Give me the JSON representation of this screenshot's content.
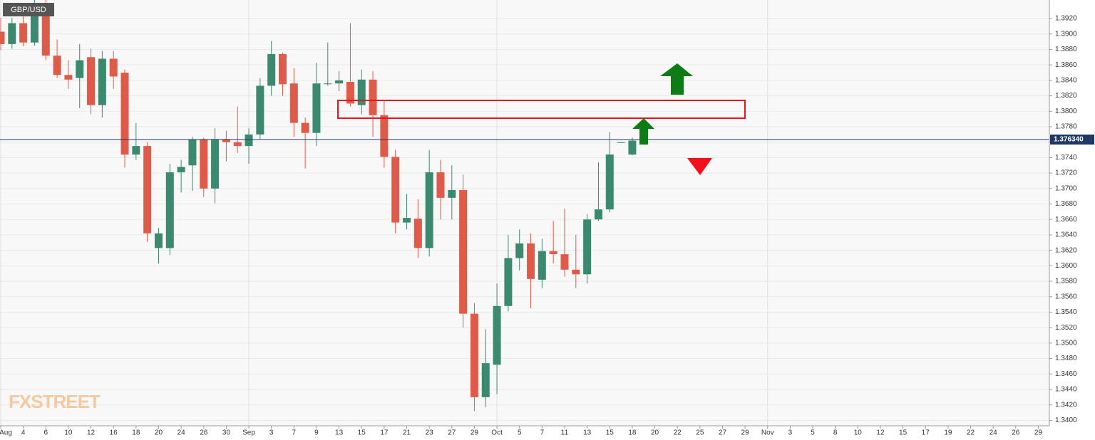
{
  "chart_data": {
    "type": "candlestick",
    "symbol": "GBP/USD",
    "watermark": "FXSTREET",
    "up_color": "#3b8a70",
    "down_color": "#de5b4a",
    "grid": true,
    "categories": [
      "Aug",
      null,
      "4",
      null,
      "6",
      null,
      "10",
      null,
      "12",
      null,
      "16",
      null,
      "18",
      null,
      "20",
      null,
      "24",
      null,
      "26",
      null,
      "30",
      null,
      "Sep",
      null,
      "3",
      null,
      "7",
      null,
      "9",
      null,
      "13",
      null,
      "15",
      null,
      "17",
      null,
      "21",
      null,
      "23",
      null,
      "27",
      null,
      "29",
      null,
      "Oct",
      null,
      "5",
      null,
      "7",
      null,
      "11",
      null,
      "13",
      null,
      "15",
      null,
      "18",
      null,
      "20",
      null,
      "22",
      null,
      "25",
      null,
      "27",
      null,
      "29",
      null,
      "Nov",
      null,
      "3",
      null,
      "5",
      null,
      "8",
      null,
      "10",
      null,
      "12",
      null,
      "15",
      null,
      "17",
      null,
      "19",
      null,
      "22",
      null,
      "24",
      null,
      "26",
      null,
      "29",
      null
    ],
    "open": [
      1.3903,
      1.3887,
      1.3914,
      1.3889,
      1.3935,
      1.3872,
      1.3847,
      1.3843,
      1.387,
      1.3808,
      1.3868,
      1.385,
      1.3744,
      1.3755,
      1.3623,
      1.3623,
      1.3721,
      1.373,
      1.3763,
      1.37,
      1.3764,
      1.376,
      1.3755,
      1.377,
      1.3833,
      1.3874,
      1.3836,
      1.3785,
      1.3772,
      1.3835,
      1.3836,
      1.3838,
      1.3808,
      1.3841,
      1.3795,
      1.3741,
      1.3656,
      1.3661,
      1.3623,
      1.3721,
      1.3688,
      1.3698,
      1.3538,
      1.343,
      1.3472,
      1.3548,
      1.361,
      1.3629,
      1.3582,
      1.3619,
      1.3615,
      1.3595,
      1.3589,
      1.366,
      1.3673,
      1.3759,
      1.3744,
      null,
      null,
      null,
      null,
      null,
      null,
      null,
      null,
      null,
      null,
      null,
      null,
      null,
      null,
      null,
      null,
      null,
      null,
      null,
      null,
      null,
      null,
      null,
      null,
      null,
      null,
      null,
      null,
      null,
      null,
      null,
      null,
      null,
      null,
      null,
      null,
      null
    ],
    "high": [
      1.3921,
      1.3921,
      1.393,
      1.3944,
      1.3944,
      1.3893,
      1.3866,
      1.3887,
      1.3881,
      1.3878,
      1.3878,
      1.3854,
      1.3785,
      1.376,
      1.3649,
      1.3732,
      1.3737,
      1.3767,
      1.3766,
      1.3778,
      1.3775,
      1.3806,
      1.3778,
      1.3843,
      1.3891,
      1.3876,
      1.3856,
      1.3792,
      1.3863,
      1.3889,
      1.3852,
      1.3914,
      1.3854,
      1.3852,
      1.3815,
      1.375,
      1.3693,
      1.3686,
      1.375,
      1.3737,
      1.373,
      1.3718,
      1.3552,
      1.3518,
      1.3577,
      1.364,
      1.3647,
      1.3642,
      1.3635,
      1.3658,
      1.3674,
      1.364,
      1.3667,
      1.3734,
      1.3773,
      1.376,
      1.3766,
      null,
      null,
      null,
      null,
      null,
      null,
      null,
      null,
      null,
      null,
      null,
      null,
      null,
      null,
      null,
      null,
      null,
      null,
      null,
      null,
      null,
      null,
      null,
      null,
      null,
      null,
      null,
      null,
      null,
      null,
      null,
      null,
      null,
      null,
      null,
      null,
      null
    ],
    "low": [
      1.3879,
      1.3881,
      1.3884,
      1.3885,
      1.3866,
      1.3843,
      1.3829,
      1.3804,
      1.3796,
      1.3792,
      1.3829,
      1.3727,
      1.3737,
      1.3631,
      1.3603,
      1.3614,
      1.3695,
      1.3697,
      1.3689,
      1.3681,
      1.3735,
      1.3746,
      1.3732,
      1.3764,
      1.382,
      1.382,
      1.3767,
      1.3726,
      1.3755,
      1.3833,
      1.3826,
      1.3806,
      1.3796,
      1.3767,
      1.3727,
      1.3642,
      1.3647,
      1.361,
      1.3612,
      1.366,
      1.366,
      1.352,
      1.3412,
      1.3417,
      1.3434,
      1.3541,
      1.3594,
      1.3545,
      1.3571,
      1.3603,
      1.3586,
      1.3571,
      1.3577,
      1.3658,
      1.3669,
      1.3759,
      1.3743,
      null,
      null,
      null,
      null,
      null,
      null,
      null,
      null,
      null,
      null,
      null,
      null,
      null,
      null,
      null,
      null,
      null,
      null,
      null,
      null,
      null,
      null,
      null,
      null,
      null,
      null,
      null,
      null,
      null,
      null,
      null,
      null,
      null,
      null,
      null,
      null,
      null
    ],
    "close": [
      1.3887,
      1.3914,
      1.3889,
      1.3935,
      1.3872,
      1.3847,
      1.3841,
      1.3866,
      1.3808,
      1.3868,
      1.3845,
      1.3744,
      1.3755,
      1.3642,
      1.3642,
      1.3721,
      1.3728,
      1.3763,
      1.37,
      1.3764,
      1.376,
      1.3755,
      1.377,
      1.3833,
      1.3874,
      1.3835,
      1.3785,
      1.3772,
      1.3836,
      1.3836,
      1.384,
      1.381,
      1.3841,
      1.3795,
      1.3741,
      1.3656,
      1.3662,
      1.3623,
      1.3721,
      1.3688,
      1.3698,
      1.3538,
      1.343,
      1.3474,
      1.3548,
      1.361,
      1.3629,
      1.3583,
      1.3619,
      1.3615,
      1.3595,
      1.3589,
      1.366,
      1.3673,
      1.3744,
      1.376,
      1.3762,
      null,
      null,
      null,
      null,
      null,
      null,
      null,
      null,
      null,
      null,
      null,
      null,
      null,
      null,
      null,
      null,
      null,
      null,
      null,
      null,
      null,
      null,
      null,
      null,
      null,
      null,
      null,
      null,
      null,
      null,
      null,
      null,
      null,
      null,
      null,
      null,
      null
    ],
    "ylim": [
      1.3393,
      1.3944
    ],
    "yticks": [
      {
        "value": 1.34,
        "label": "1.3400"
      },
      {
        "value": 1.342,
        "label": "1.3420"
      },
      {
        "value": 1.344,
        "label": "1.3440"
      },
      {
        "value": 1.346,
        "label": "1.3460"
      },
      {
        "value": 1.348,
        "label": "1.3480"
      },
      {
        "value": 1.35,
        "label": "1.3500"
      },
      {
        "value": 1.352,
        "label": "1.3520"
      },
      {
        "value": 1.354,
        "label": "1.3540"
      },
      {
        "value": 1.356,
        "label": "1.3560"
      },
      {
        "value": 1.358,
        "label": "1.3580"
      },
      {
        "value": 1.36,
        "label": "1.3600"
      },
      {
        "value": 1.362,
        "label": "1.3620"
      },
      {
        "value": 1.364,
        "label": "1.3640"
      },
      {
        "value": 1.366,
        "label": "1.3660"
      },
      {
        "value": 1.368,
        "label": "1.3680"
      },
      {
        "value": 1.37,
        "label": "1.3700"
      },
      {
        "value": 1.372,
        "label": "1.3720"
      },
      {
        "value": 1.374,
        "label": "1.3740"
      },
      {
        "value": 1.376,
        "label": "1.3760"
      },
      {
        "value": 1.378,
        "label": "1.3780"
      },
      {
        "value": 1.38,
        "label": "1.3800"
      },
      {
        "value": 1.382,
        "label": "1.3820"
      },
      {
        "value": 1.384,
        "label": "1.3840"
      },
      {
        "value": 1.386,
        "label": "1.3860"
      },
      {
        "value": 1.388,
        "label": "1.3880"
      },
      {
        "value": 1.39,
        "label": "1.3900"
      },
      {
        "value": 1.392,
        "label": "1.3920"
      }
    ],
    "last_price": {
      "value": 1.37634,
      "label": "1.376340"
    }
  }
}
